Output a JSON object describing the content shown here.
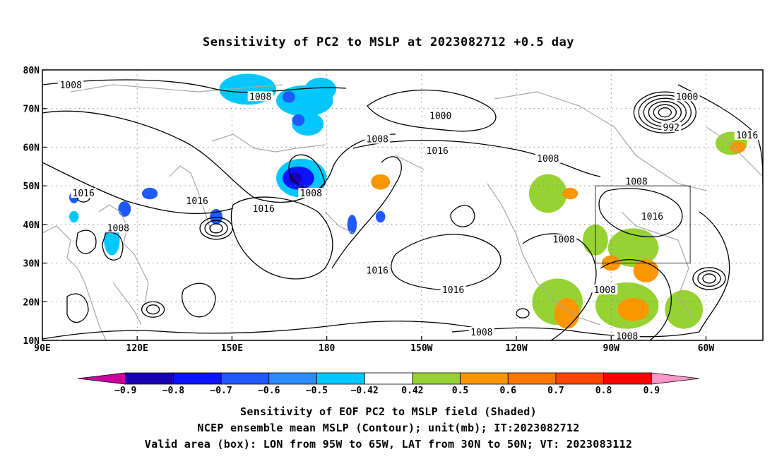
{
  "title": "Sensitivity of PC2 to MSLP at 2023082712 +0.5 day",
  "map": {
    "lon_ticks": [
      {
        "lon": 90,
        "label": "90E"
      },
      {
        "lon": 120,
        "label": "120E"
      },
      {
        "lon": 150,
        "label": "150E"
      },
      {
        "lon": 180,
        "label": "180"
      },
      {
        "lon": 210,
        "label": "150W"
      },
      {
        "lon": 240,
        "label": "120W"
      },
      {
        "lon": 270,
        "label": "90W"
      },
      {
        "lon": 300,
        "label": "60W"
      }
    ],
    "lat_ticks": [
      {
        "lat": 10,
        "label": "10N"
      },
      {
        "lat": 20,
        "label": "20N"
      },
      {
        "lat": 30,
        "label": "30N"
      },
      {
        "lat": 40,
        "label": "40N"
      },
      {
        "lat": 50,
        "label": "50N"
      },
      {
        "lat": 60,
        "label": "60N"
      },
      {
        "lat": 70,
        "label": "70N"
      },
      {
        "lat": 80,
        "label": "80N"
      }
    ],
    "lon_range": [
      90,
      318
    ],
    "lat_range": [
      10,
      80
    ],
    "grid": "dotted",
    "valid_box": {
      "lon_min": 265,
      "lon_max": 295,
      "lat_min": 30,
      "lat_max": 50
    },
    "contour_labels": [
      {
        "text": "1008",
        "lon": 99,
        "lat": 76
      },
      {
        "text": "1008",
        "lon": 159,
        "lat": 73
      },
      {
        "text": "1000",
        "lon": 216,
        "lat": 68
      },
      {
        "text": "1000",
        "lon": 294,
        "lat": 73
      },
      {
        "text": "992",
        "lon": 289,
        "lat": 65
      },
      {
        "text": "1016",
        "lon": 313,
        "lat": 63
      },
      {
        "text": "1008",
        "lon": 196,
        "lat": 62
      },
      {
        "text": "1016",
        "lon": 215,
        "lat": 59
      },
      {
        "text": "1008",
        "lon": 250,
        "lat": 57
      },
      {
        "text": "1008",
        "lon": 278,
        "lat": 51
      },
      {
        "text": "1016",
        "lon": 103,
        "lat": 48
      },
      {
        "text": "1016",
        "lon": 139,
        "lat": 46
      },
      {
        "text": "1008",
        "lon": 175,
        "lat": 48
      },
      {
        "text": "1016",
        "lon": 160,
        "lat": 44
      },
      {
        "text": "1016",
        "lon": 283,
        "lat": 42
      },
      {
        "text": "1008",
        "lon": 114,
        "lat": 39
      },
      {
        "text": "1008",
        "lon": 255,
        "lat": 36
      },
      {
        "text": "1016",
        "lon": 196,
        "lat": 28
      },
      {
        "text": "1016",
        "lon": 220,
        "lat": 23
      },
      {
        "text": "1008",
        "lon": 268,
        "lat": 23
      },
      {
        "text": "1008",
        "lon": 229,
        "lat": 12
      },
      {
        "text": "1008",
        "lon": 275,
        "lat": 11
      }
    ],
    "lows": [
      {
        "lon": 145,
        "lat": 39,
        "rings": 3
      },
      {
        "lon": 125,
        "lat": 18,
        "rings": 2
      },
      {
        "lon": 301,
        "lat": 26,
        "rings": 3
      },
      {
        "lon": 242,
        "lat": 17,
        "rings": 1
      },
      {
        "lon": 287,
        "lat": 69,
        "rings": 6
      },
      {
        "lon": 103,
        "lat": 47,
        "rings": 1
      }
    ],
    "shaded_patches": [
      {
        "lon": 155,
        "lat": 75,
        "rx": 9,
        "ry": 4,
        "level": "-0.5"
      },
      {
        "lon": 173,
        "lat": 72,
        "rx": 9,
        "ry": 4,
        "level": "-0.5"
      },
      {
        "lon": 178,
        "lat": 75,
        "rx": 5,
        "ry": 3,
        "level": "-0.5"
      },
      {
        "lon": 174,
        "lat": 66,
        "rx": 5,
        "ry": 3,
        "level": "-0.5"
      },
      {
        "lon": 168,
        "lat": 73,
        "rx": 2,
        "ry": 1.5,
        "level": "-0.6"
      },
      {
        "lon": 171,
        "lat": 67,
        "rx": 2,
        "ry": 1.5,
        "level": "-0.6"
      },
      {
        "lon": 172,
        "lat": 52,
        "rx": 8,
        "ry": 5,
        "level": "-0.5"
      },
      {
        "lon": 171,
        "lat": 52,
        "rx": 5,
        "ry": 3,
        "level": "-0.7"
      },
      {
        "lon": 170,
        "lat": 52,
        "rx": 2,
        "ry": 1.5,
        "level": "-0.8"
      },
      {
        "lon": 124,
        "lat": 48,
        "rx": 2.5,
        "ry": 1.5,
        "level": "-0.6"
      },
      {
        "lon": 116,
        "lat": 44,
        "rx": 2,
        "ry": 2,
        "level": "-0.6"
      },
      {
        "lon": 100,
        "lat": 47,
        "rx": 1.5,
        "ry": 1.5,
        "level": "-0.6"
      },
      {
        "lon": 112,
        "lat": 36,
        "rx": 2.5,
        "ry": 4,
        "level": "-0.5"
      },
      {
        "lon": 145,
        "lat": 42,
        "rx": 2,
        "ry": 2,
        "level": "-0.6"
      },
      {
        "lon": 100,
        "lat": 42,
        "rx": 1.5,
        "ry": 1.5,
        "level": "-0.5"
      },
      {
        "lon": 188,
        "lat": 40,
        "rx": 1.5,
        "ry": 2.5,
        "level": "-0.6"
      },
      {
        "lon": 197,
        "lat": 42,
        "rx": 1.5,
        "ry": 1.5,
        "level": "-0.6"
      },
      {
        "lon": 197,
        "lat": 51,
        "rx": 3,
        "ry": 2,
        "level": "0.6"
      },
      {
        "lon": 250,
        "lat": 48,
        "rx": 6,
        "ry": 5,
        "level": "0.5"
      },
      {
        "lon": 257,
        "lat": 48,
        "rx": 2.5,
        "ry": 1.5,
        "level": "0.6"
      },
      {
        "lon": 265,
        "lat": 36,
        "rx": 4,
        "ry": 4,
        "level": "0.5"
      },
      {
        "lon": 277,
        "lat": 34,
        "rx": 8,
        "ry": 5,
        "level": "0.5"
      },
      {
        "lon": 281,
        "lat": 28,
        "rx": 4,
        "ry": 3,
        "level": "0.6"
      },
      {
        "lon": 270,
        "lat": 30,
        "rx": 3,
        "ry": 2,
        "level": "0.6"
      },
      {
        "lon": 253,
        "lat": 20,
        "rx": 8,
        "ry": 6,
        "level": "0.5"
      },
      {
        "lon": 256,
        "lat": 17,
        "rx": 4,
        "ry": 4,
        "level": "0.6"
      },
      {
        "lon": 275,
        "lat": 19,
        "rx": 10,
        "ry": 6,
        "level": "0.5"
      },
      {
        "lon": 277,
        "lat": 18,
        "rx": 5,
        "ry": 3,
        "level": "0.6"
      },
      {
        "lon": 293,
        "lat": 18,
        "rx": 6,
        "ry": 5,
        "level": "0.5"
      },
      {
        "lon": 308,
        "lat": 61,
        "rx": 5,
        "ry": 3,
        "level": "0.5"
      },
      {
        "lon": 310,
        "lat": 60,
        "rx": 2.5,
        "ry": 1.5,
        "level": "0.6"
      }
    ]
  },
  "colorbar": {
    "colors": [
      "#c8009c",
      "#1a00b4",
      "#0a14ff",
      "#1e5aff",
      "#2b8cfa",
      "#00c8ff",
      "#ffffff",
      "#96d232",
      "#fa9600",
      "#fa7800",
      "#fa4600",
      "#ff0000",
      "#ff96c8"
    ],
    "labels": [
      "−0.9",
      "−0.8",
      "−0.7",
      "−0.6",
      "−0.5",
      "−0.42",
      "0.42",
      "0.5",
      "0.6",
      "0.7",
      "0.8",
      "0.9"
    ]
  },
  "level_colors": {
    "-0.8": "#1a00b4",
    "-0.7": "#0a14ff",
    "-0.6": "#1e5aff",
    "-0.5": "#00c8ff",
    "0.5": "#96d232",
    "0.6": "#fa9600",
    "0.7": "#fa7800"
  },
  "captions": [
    "Sensitivity of EOF PC2 to MSLP field (Shaded)",
    "NCEP ensemble mean MSLP (Contour); unit(mb); IT:2023082712",
    "Valid area (box): LON from 95W to 65W, LAT from 30N to 50N; VT: 2023083112"
  ]
}
